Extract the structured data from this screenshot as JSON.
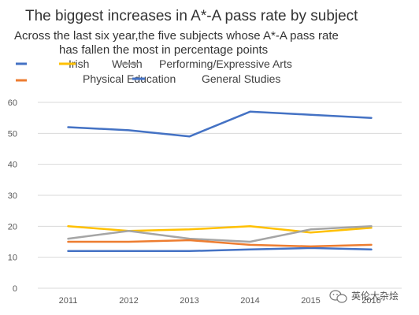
{
  "chart_data": {
    "type": "line",
    "title": "The biggest increases in A*-A pass rate by subject",
    "subtitle_line1": "Across the last six year,the five subjects whose  A*-A pass rate",
    "subtitle_line2": "has fallen the most in percentage points",
    "categories": [
      "2011",
      "2012",
      "2013",
      "2014",
      "2015",
      "2016"
    ],
    "ylim": [
      0,
      60
    ],
    "yticks": [
      0,
      10,
      20,
      30,
      40,
      50,
      60
    ],
    "grid": true,
    "legend_position": "top",
    "series": [
      {
        "name": "Irish",
        "color": "#4472C4",
        "values": [
          12,
          12,
          12,
          12.5,
          13,
          12.5
        ]
      },
      {
        "name": "Welsh",
        "color": "#FFC000",
        "values": [
          20,
          18.5,
          19,
          20,
          18,
          19.5
        ]
      },
      {
        "name": "Performing/Expressive Arts",
        "color": "#A5A5A5",
        "values": [
          16,
          18.5,
          16,
          15,
          19,
          20
        ]
      },
      {
        "name": "Physical Education",
        "color": "#ED7D31",
        "values": [
          15,
          15,
          15.5,
          14,
          13.5,
          14
        ]
      },
      {
        "name": "General Studies",
        "color": "#4472C4",
        "values": [
          52,
          51,
          49,
          57,
          56,
          55
        ]
      }
    ]
  },
  "watermark": {
    "icon": "wechat-icon",
    "text": "英伦大杂烩"
  }
}
